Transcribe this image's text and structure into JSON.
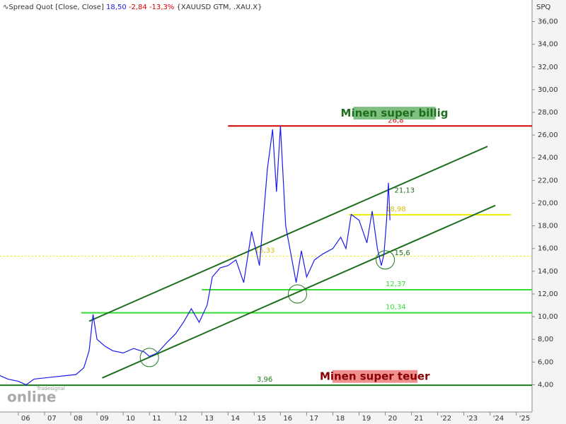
{
  "header": {
    "title": "Spread Quot [Close, Close]",
    "last": "18,50",
    "change": "-2,84",
    "change_pct": "-13,3%",
    "symbols": "{XAUUSD GTM, .XAU.X}",
    "axis_name": "SPQ",
    "logo_small": "Tradesignal",
    "logo": "online"
  },
  "chart_data": {
    "type": "line",
    "x": [
      2005.3,
      2005.6,
      2006.0,
      2006.3,
      2006.6,
      2007.0,
      2007.4,
      2007.8,
      2008.2,
      2008.5,
      2008.7,
      2008.85,
      2009.0,
      2009.3,
      2009.6,
      2010.0,
      2010.4,
      2010.8,
      2011.0,
      2011.3,
      2011.7,
      2012.0,
      2012.3,
      2012.6,
      2012.9,
      2013.2,
      2013.4,
      2013.7,
      2014.0,
      2014.3,
      2014.6,
      2014.9,
      2015.2,
      2015.5,
      2015.7,
      2015.85,
      2016.0,
      2016.2,
      2016.4,
      2016.6,
      2016.8,
      2017.0,
      2017.3,
      2017.6,
      2018.0,
      2018.3,
      2018.5,
      2018.7,
      2019.0,
      2019.3,
      2019.5,
      2019.7,
      2019.85,
      2019.95,
      2020.05,
      2020.12,
      2020.18
    ],
    "series": [
      {
        "name": "Spread Quot",
        "color": "#1a1aee",
        "values": [
          4.8,
          4.5,
          4.3,
          4.0,
          4.5,
          4.6,
          4.7,
          4.8,
          4.9,
          5.5,
          7.0,
          10.2,
          8.0,
          7.4,
          7.0,
          6.8,
          7.2,
          6.9,
          6.5,
          6.8,
          7.8,
          8.5,
          9.5,
          10.7,
          9.5,
          11.0,
          13.5,
          14.3,
          14.5,
          15.0,
          13.0,
          17.5,
          14.5,
          23.0,
          26.5,
          21.0,
          26.8,
          18.0,
          15.5,
          13.0,
          15.8,
          13.5,
          15.0,
          15.5,
          16.0,
          17.0,
          16.0,
          19.0,
          18.5,
          16.5,
          19.3,
          16.0,
          14.5,
          15.5,
          18.5,
          21.8,
          18.5
        ]
      }
    ],
    "xlim": [
      2005.3,
      2025.6
    ],
    "xticks": [
      {
        "value": 2006,
        "label": "06"
      },
      {
        "value": 2007,
        "label": "07"
      },
      {
        "value": 2008,
        "label": "08"
      },
      {
        "value": 2009,
        "label": "09"
      },
      {
        "value": 2010,
        "label": "10"
      },
      {
        "value": 2011,
        "label": "11"
      },
      {
        "value": 2012,
        "label": "12"
      },
      {
        "value": 2013,
        "label": "13"
      },
      {
        "value": 2014,
        "label": "14"
      },
      {
        "value": 2015,
        "label": "15"
      },
      {
        "value": 2016,
        "label": "16"
      },
      {
        "value": 2017,
        "label": "17"
      },
      {
        "value": 2018,
        "label": "18"
      },
      {
        "value": 2019,
        "label": "19"
      },
      {
        "value": 2020,
        "label": "20"
      },
      {
        "value": 2021,
        "label": "21"
      },
      {
        "value": 2022,
        "label": "'22"
      },
      {
        "value": 2023,
        "label": "'23"
      },
      {
        "value": 2024,
        "label": "'24"
      },
      {
        "value": 2025,
        "label": "'25"
      }
    ],
    "ylim": [
      1.6,
      37.9
    ],
    "yticks": [
      {
        "value": 4,
        "label": "4,00"
      },
      {
        "value": 6,
        "label": "6,00"
      },
      {
        "value": 8,
        "label": "8,00"
      },
      {
        "value": 10,
        "label": "10,00"
      },
      {
        "value": 12,
        "label": "12,00"
      },
      {
        "value": 14,
        "label": "14,00"
      },
      {
        "value": 16,
        "label": "16,00"
      },
      {
        "value": 18,
        "label": "18,00"
      },
      {
        "value": 20,
        "label": "20,00"
      },
      {
        "value": 22,
        "label": "22,00"
      },
      {
        "value": 24,
        "label": "24,00"
      },
      {
        "value": 26,
        "label": "26,00"
      },
      {
        "value": 28,
        "label": "28,00"
      },
      {
        "value": 30,
        "label": "30,00"
      },
      {
        "value": 32,
        "label": "32,00"
      },
      {
        "value": 34,
        "label": "34,00"
      },
      {
        "value": 36,
        "label": "36,00"
      }
    ],
    "levels": [
      {
        "value": 26.8,
        "label": "26,8",
        "color": "#d40000",
        "x": [
          2014,
          2025.6
        ],
        "label_x": 2020.4,
        "dashed": false
      },
      {
        "value": 18.98,
        "label": "18,98",
        "color": "#eeee00",
        "x": [
          2018.6,
          2024.8
        ],
        "label_x": 2020.4,
        "dashed": false
      },
      {
        "value": 15.33,
        "label": "15,33",
        "color": "#eeee00",
        "x": [
          2005.3,
          2025.6
        ],
        "label_x": 2015.4,
        "dashed": true
      },
      {
        "value": 12.37,
        "label": "12,37",
        "color": "#33dd33",
        "x": [
          2013,
          2025.6
        ],
        "label_x": 2020.4,
        "dashed": false
      },
      {
        "value": 10.34,
        "label": "10,34",
        "color": "#33dd33",
        "x": [
          2008.4,
          2025.6
        ],
        "label_x": 2020.4,
        "dashed": false
      },
      {
        "value": 3.96,
        "label": "3,96",
        "color": "#1e7a1e",
        "x": [
          2005.3,
          2025.6
        ],
        "label_x": 2015.4,
        "dashed": false
      }
    ],
    "point_labels": [
      {
        "value": 21.13,
        "label": "21,13",
        "x": 2020.35,
        "color": "#1e6e1e"
      },
      {
        "value": 15.6,
        "label": "15,6",
        "x": 2020.35,
        "color": "#1e6e1e"
      }
    ],
    "trendlines": [
      {
        "x": [
          2008.7,
          2023.9
        ],
        "y": [
          9.6,
          25.0
        ],
        "color": "#1e6e1e"
      },
      {
        "x": [
          2009.2,
          2024.2
        ],
        "y": [
          4.6,
          19.8
        ],
        "color": "#1e6e1e"
      }
    ],
    "circles": [
      {
        "x": 2011.0,
        "y": 6.4
      },
      {
        "x": 2016.65,
        "y": 12.0
      },
      {
        "x": 2020.0,
        "y": 15.0
      }
    ],
    "annotations": [
      {
        "text": "Minen super billig",
        "x": 2020.35,
        "y": 27.9,
        "color": "#1e6e1e",
        "box": "#7fbf7f"
      },
      {
        "text": "Minen super teuer",
        "x": 2019.6,
        "y": 4.7,
        "color": "#8b0000",
        "box": "#f08f8f"
      }
    ]
  }
}
